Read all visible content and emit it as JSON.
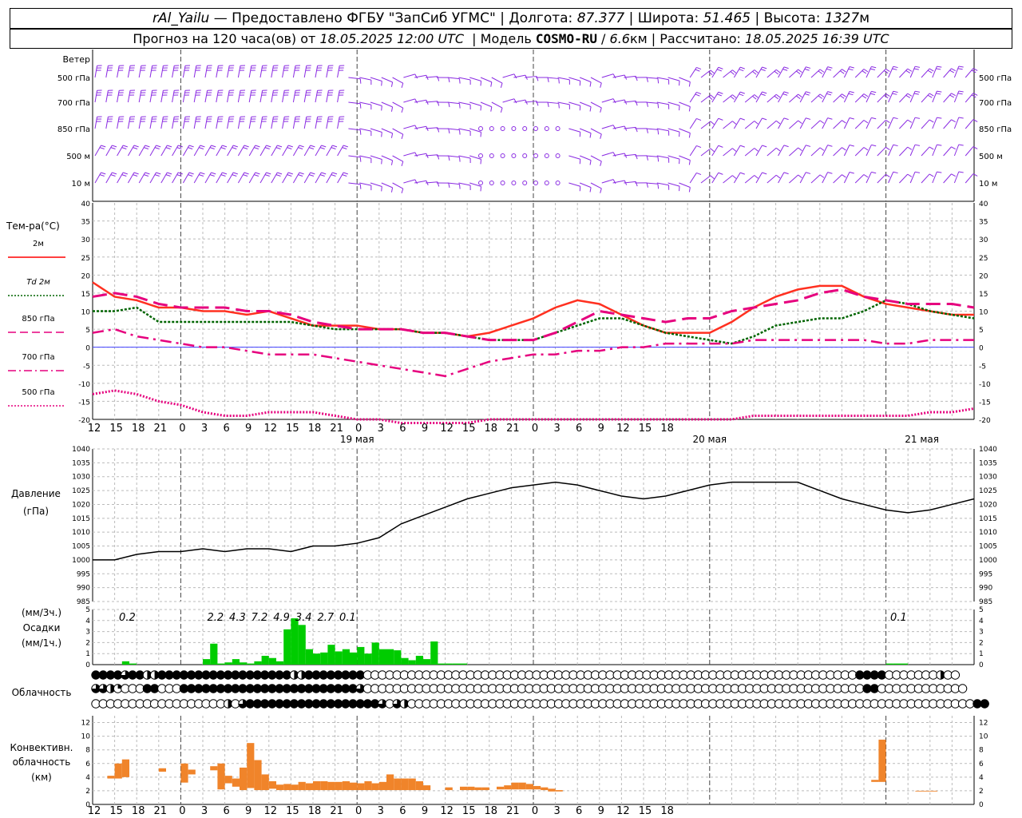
{
  "header": {
    "station": "rAl_Yailu",
    "provider": "— Предоставлено ФГБУ \"ЗапСиб УГМС\"",
    "lon_label": "Долгота:",
    "lon_value": "87.377",
    "lat_label": "Широта:",
    "lat_value": "51.465",
    "alt_label": "Высота:",
    "alt_value": "1327",
    "alt_unit": "м",
    "forecast_prefix": "Прогноз на 120 часа(ов) от",
    "forecast_start": "18.05.2025 12:00 UTC",
    "model_label": "Модель",
    "model_name": "COSMO-RU",
    "model_res": "6.6",
    "model_res_unit": "км",
    "computed_label": "Рассчитано:",
    "computed_value": "18.05.2025 16:39 UTC"
  },
  "labels": {
    "wind_title": "Ветер",
    "wind_levels": [
      "500 гПа",
      "700 гПа",
      "850 гПа",
      "500 м",
      "10 м"
    ],
    "temp_title": "Тем-ра(°C)",
    "legend": [
      {
        "label": "2м",
        "color": "#ff0000",
        "style": "solid"
      },
      {
        "label": "Td 2м",
        "color": "#006400",
        "style": "dotted"
      },
      {
        "label": "850 гПа",
        "color": "#e6007e",
        "style": "dashed"
      },
      {
        "label": "700 гПа",
        "color": "#e6007e",
        "style": "dashdot"
      },
      {
        "label": "500 гПа",
        "color": "#e6007e",
        "style": "dotted"
      }
    ],
    "pressure_title": "Давление",
    "pressure_unit": "(гПа)",
    "precip_unit_3h": "(мм/3ч.)",
    "precip_title": "Осадки",
    "precip_unit_1h": "(мм/1ч.)",
    "cloud_title": "Облачность",
    "conv_title_1": "Конвективн.",
    "conv_title_2": "облачность",
    "conv_unit": "(км)",
    "day_labels": [
      "19 мая",
      "20 мая",
      "21 мая"
    ],
    "hour_labels": [
      "12",
      "15",
      "18",
      "21",
      "0",
      "3",
      "6",
      "9",
      "12",
      "15",
      "18",
      "21",
      "0",
      "3",
      "6",
      "9",
      "12",
      "15",
      "18",
      "21",
      "0",
      "3",
      "6",
      "9",
      "12",
      "15",
      "18"
    ]
  },
  "colors": {
    "wind": "#8a2be2",
    "t2m": "#ff3020",
    "td": "#006400",
    "upper": "#e6007e",
    "pressure": "#000000",
    "precip": "#00cc00",
    "conv": "#f0842a",
    "zero_line": "#4040ff"
  },
  "chart_data": [
    {
      "type": "line",
      "title": "Тем-ра(°C)",
      "x_hours_from_start": [
        0,
        3,
        6,
        9,
        12,
        15,
        18,
        21,
        24,
        27,
        30,
        33,
        36,
        39,
        42,
        45,
        48,
        51,
        54,
        57,
        60,
        63,
        66,
        69,
        72,
        75,
        78,
        81,
        84,
        87,
        90,
        93,
        96,
        99,
        102,
        105,
        108,
        111,
        114,
        117,
        120
      ],
      "ylim": [
        -20,
        40
      ],
      "series": [
        {
          "name": "2м",
          "values": [
            18,
            14,
            13,
            11,
            11,
            10,
            10,
            9,
            10,
            8,
            6,
            6,
            6,
            5,
            5,
            4,
            4,
            3,
            4,
            6,
            8,
            11,
            13,
            12,
            9,
            6,
            4,
            4,
            4,
            7,
            11,
            14,
            16,
            17,
            17,
            14,
            12,
            11,
            10,
            9,
            9
          ]
        },
        {
          "name": "Td 2м",
          "values": [
            10,
            10,
            11,
            7,
            7,
            7,
            7,
            7,
            7,
            7,
            6,
            5,
            5,
            5,
            5,
            4,
            4,
            3,
            2,
            2,
            2,
            4,
            6,
            8,
            8,
            6,
            4,
            3,
            2,
            1,
            3,
            6,
            7,
            8,
            8,
            10,
            13,
            12,
            10,
            9,
            8
          ]
        },
        {
          "name": "850 гПа",
          "values": [
            14,
            15,
            14,
            12,
            11,
            11,
            11,
            10,
            10,
            9,
            7,
            6,
            5,
            5,
            5,
            4,
            4,
            3,
            2,
            2,
            2,
            4,
            7,
            10,
            9,
            8,
            7,
            8,
            8,
            10,
            11,
            12,
            13,
            15,
            16,
            14,
            13,
            12,
            12,
            12,
            11
          ]
        },
        {
          "name": "700 гПа",
          "values": [
            4,
            5,
            3,
            2,
            1,
            0,
            0,
            -1,
            -2,
            -2,
            -2,
            -3,
            -4,
            -5,
            -6,
            -7,
            -8,
            -6,
            -4,
            -3,
            -2,
            -2,
            -1,
            -1,
            0,
            0,
            1,
            1,
            1,
            1,
            2,
            2,
            2,
            2,
            2,
            2,
            1,
            1,
            2,
            2,
            2
          ]
        },
        {
          "name": "500 гПа",
          "values": [
            -13,
            -12,
            -13,
            -15,
            -16,
            -18,
            -19,
            -19,
            -18,
            -18,
            -18,
            -19,
            -20,
            -20,
            -21,
            -21,
            -21,
            -21,
            -20,
            -20,
            -20,
            -20,
            -20,
            -20,
            -20,
            -20,
            -20,
            -20,
            -20,
            -20,
            -19,
            -19,
            -19,
            -19,
            -19,
            -19,
            -19,
            -19,
            -18,
            -18,
            -17
          ]
        }
      ]
    },
    {
      "type": "line",
      "title": "Давление",
      "ylabel": "(гПа)",
      "ylim": [
        985,
        1040
      ],
      "x_hours_from_start": [
        0,
        3,
        6,
        9,
        12,
        15,
        18,
        21,
        24,
        27,
        30,
        33,
        36,
        39,
        42,
        45,
        48,
        51,
        54,
        57,
        60,
        63,
        66,
        69,
        72,
        75,
        78,
        81,
        84,
        87,
        90,
        93,
        96,
        99,
        102,
        105,
        108,
        111,
        114,
        117,
        120
      ],
      "series": [
        {
          "name": "Давление",
          "values": [
            1000,
            1000,
            1002,
            1003,
            1003,
            1004,
            1003,
            1004,
            1004,
            1003,
            1005,
            1005,
            1006,
            1008,
            1013,
            1016,
            1019,
            1022,
            1024,
            1026,
            1027,
            1028,
            1027,
            1025,
            1023,
            1022,
            1023,
            1025,
            1027,
            1028,
            1028,
            1028,
            1028,
            1025,
            1022,
            1020,
            1018,
            1017,
            1018,
            1020,
            1022
          ]
        }
      ]
    },
    {
      "type": "bar",
      "title": "Осадки",
      "ylabel": "(мм/1ч.)",
      "ylim": [
        0,
        5
      ],
      "x_hours_from_start": [
        4,
        5,
        15,
        16,
        17,
        18,
        19,
        20,
        21,
        22,
        23,
        24,
        25,
        26,
        27,
        28,
        29,
        30,
        31,
        32,
        33,
        34,
        35,
        36,
        37,
        38,
        39,
        40,
        41,
        42,
        43,
        44,
        45,
        46,
        47,
        48,
        49,
        50,
        51,
        108,
        109,
        110
      ],
      "values": [
        0.3,
        0.1,
        0.5,
        1.9,
        0.1,
        0.2,
        0.5,
        0.2,
        0.1,
        0.3,
        0.8,
        0.6,
        0.3,
        3.2,
        4.2,
        3.6,
        1.4,
        1.0,
        1.1,
        1.8,
        1.2,
        1.4,
        1.1,
        1.6,
        1.0,
        2.0,
        1.4,
        1.4,
        1.3,
        0.6,
        0.4,
        0.8,
        0.5,
        2.1,
        0.1,
        0.1,
        0.1,
        0.1,
        0.0,
        0.1,
        0.1,
        0.1
      ],
      "totals_3h": [
        {
          "hour": 4.5,
          "label": "0.2"
        },
        {
          "hour": 16.5,
          "label": "2.2"
        },
        {
          "hour": 19.5,
          "label": "4.3"
        },
        {
          "hour": 22.5,
          "label": "7.2"
        },
        {
          "hour": 25.5,
          "label": "4.9"
        },
        {
          "hour": 28.5,
          "label": "3.4"
        },
        {
          "hour": 31.5,
          "label": "2.7"
        },
        {
          "hour": 34.5,
          "label": "0.1"
        },
        {
          "hour": 109.5,
          "label": "0.1"
        }
      ]
    },
    {
      "type": "bar",
      "title": "Конвективн. облачность",
      "ylabel": "(км)",
      "ylim": [
        0,
        13
      ],
      "bars": [
        {
          "h0": 2,
          "h1": 3,
          "base": 3.8,
          "top": 4.2
        },
        {
          "h0": 3,
          "h1": 4,
          "base": 3.8,
          "top": 6
        },
        {
          "h0": 4,
          "h1": 5,
          "base": 4,
          "top": 6.6
        },
        {
          "h0": 9,
          "h1": 10,
          "base": 4.8,
          "top": 5.3
        },
        {
          "h0": 12,
          "h1": 13,
          "base": 3.2,
          "top": 6
        },
        {
          "h0": 13,
          "h1": 14,
          "base": 4.4,
          "top": 5.1
        },
        {
          "h0": 16,
          "h1": 17,
          "base": 5,
          "top": 5.6
        },
        {
          "h0": 17,
          "h1": 18,
          "base": 2.2,
          "top": 6
        },
        {
          "h0": 18,
          "h1": 19,
          "base": 3.1,
          "top": 4.2
        },
        {
          "h0": 19,
          "h1": 20,
          "base": 2.6,
          "top": 3.8
        },
        {
          "h0": 20,
          "h1": 21,
          "base": 2.1,
          "top": 5.4
        },
        {
          "h0": 21,
          "h1": 22,
          "base": 2.4,
          "top": 9
        },
        {
          "h0": 22,
          "h1": 23,
          "base": 2.1,
          "top": 6.5
        },
        {
          "h0": 23,
          "h1": 24,
          "base": 2.1,
          "top": 4.4
        },
        {
          "h0": 24,
          "h1": 25,
          "base": 2.3,
          "top": 3.4
        },
        {
          "h0": 25,
          "h1": 26,
          "base": 2.1,
          "top": 2.9
        },
        {
          "h0": 26,
          "h1": 27,
          "base": 2.1,
          "top": 3
        },
        {
          "h0": 27,
          "h1": 28,
          "base": 2.1,
          "top": 2.9
        },
        {
          "h0": 28,
          "h1": 29,
          "base": 2.1,
          "top": 3.3
        },
        {
          "h0": 29,
          "h1": 30,
          "base": 2.1,
          "top": 3.1
        },
        {
          "h0": 30,
          "h1": 31,
          "base": 2.1,
          "top": 3.4
        },
        {
          "h0": 31,
          "h1": 32,
          "base": 2.1,
          "top": 3.4
        },
        {
          "h0": 32,
          "h1": 33,
          "base": 2.1,
          "top": 3.3
        },
        {
          "h0": 33,
          "h1": 34,
          "base": 2.1,
          "top": 3.3
        },
        {
          "h0": 34,
          "h1": 35,
          "base": 2.1,
          "top": 3.4
        },
        {
          "h0": 35,
          "h1": 36,
          "base": 2.1,
          "top": 3.2
        },
        {
          "h0": 36,
          "h1": 37,
          "base": 2.1,
          "top": 3.1
        },
        {
          "h0": 37,
          "h1": 38,
          "base": 2.1,
          "top": 3.4
        },
        {
          "h0": 38,
          "h1": 39,
          "base": 2.1,
          "top": 3.1
        },
        {
          "h0": 39,
          "h1": 40,
          "base": 2.1,
          "top": 3.3
        },
        {
          "h0": 40,
          "h1": 41,
          "base": 2.1,
          "top": 4.4
        },
        {
          "h0": 41,
          "h1": 42,
          "base": 2.1,
          "top": 3.8
        },
        {
          "h0": 42,
          "h1": 43,
          "base": 2.1,
          "top": 3.8
        },
        {
          "h0": 43,
          "h1": 44,
          "base": 2.1,
          "top": 3.8
        },
        {
          "h0": 44,
          "h1": 45,
          "base": 2.1,
          "top": 3.4
        },
        {
          "h0": 45,
          "h1": 46,
          "base": 2.1,
          "top": 2.8
        },
        {
          "h0": 48,
          "h1": 49,
          "base": 2.1,
          "top": 2.5
        },
        {
          "h0": 50,
          "h1": 51,
          "base": 2.1,
          "top": 2.6
        },
        {
          "h0": 51,
          "h1": 52,
          "base": 2.1,
          "top": 2.6
        },
        {
          "h0": 52,
          "h1": 53,
          "base": 2.1,
          "top": 2.5
        },
        {
          "h0": 53,
          "h1": 54,
          "base": 2.1,
          "top": 2.5
        },
        {
          "h0": 55,
          "h1": 56,
          "base": 2.2,
          "top": 2.6
        },
        {
          "h0": 56,
          "h1": 57,
          "base": 2.2,
          "top": 2.8
        },
        {
          "h0": 57,
          "h1": 58,
          "base": 2.2,
          "top": 3.2
        },
        {
          "h0": 58,
          "h1": 59,
          "base": 2.2,
          "top": 3.2
        },
        {
          "h0": 59,
          "h1": 60,
          "base": 2.2,
          "top": 3
        },
        {
          "h0": 60,
          "h1": 61,
          "base": 2.2,
          "top": 2.7
        },
        {
          "h0": 61,
          "h1": 62,
          "base": 2.1,
          "top": 2.5
        },
        {
          "h0": 62,
          "h1": 63,
          "base": 1.9,
          "top": 2.3
        },
        {
          "h0": 63,
          "h1": 64,
          "base": 1.9,
          "top": 2.1
        },
        {
          "h0": 106,
          "h1": 107,
          "base": 3.3,
          "top": 3.6
        },
        {
          "h0": 107,
          "h1": 108,
          "base": 3.3,
          "top": 9.5
        },
        {
          "h0": 112,
          "h1": 113,
          "base": 1.9,
          "top": 2
        },
        {
          "h0": 113,
          "h1": 114,
          "base": 1.9,
          "top": 2
        },
        {
          "h0": 114,
          "h1": 115,
          "base": 1.9,
          "top": 2
        }
      ]
    }
  ],
  "cloud_rows": [
    "FFFFQFFHHFFFFFFFFFFFFFFFFFFHHFFFFFFFFEEEEEEEEEEEEEEEEEEEEEEEEEEEEEEEEEEEEEEEEEEEEEEEEEEEEEEEEEEEEEEEEEEEFFFFEEEEEEEHEE",
    "QQHTEEEFFEEEFFFFFFFFFFFFFFFFFFFFFFFFQEEEEEEEEEEEEEEEEEEEEEEEEEEEEEEEEEEEEEEEEEEEEEEEEEEEEEEEEEEEEEEEEEEEEFFEEEEEEEEEEEE",
    "EEEEEEEEEEEEEEEEEEHEQFFFFFFFFFFFFFFFFFFQEQHEEEEEEEEEEEEEEEEEEEEEEEEEEEEEEEEEEEEEEEEEEEEEEEEEEEEEEEEEEEEEEEEEEEEEEEEEEEEEFF"
  ]
}
